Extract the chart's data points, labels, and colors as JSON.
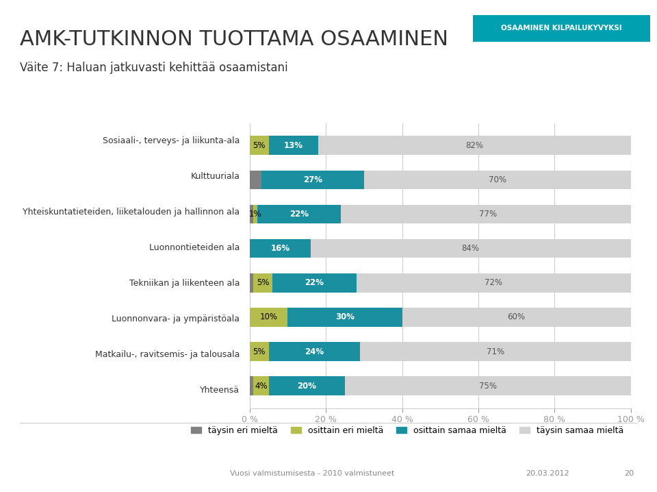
{
  "title_main": "AMK-TUTKINNON TUOTTAMA OSAAMINEN",
  "title_badge": "OSAAMINEN KILPAILUKYVYKSI",
  "subtitle": "Väite 7: Haluan jatkuvasti kehittää osaamistani",
  "categories": [
    "Yhteensä",
    "Matkailu-, ravitsemis- ja talousala",
    "Luonnonvara- ja ympäristöala",
    "Tekniikan ja liikenteen ala",
    "Luonnontieteiden ala",
    "Yhteiskuntatieteiden, liiketalouden ja hallinnon ala",
    "Kulttuuriala",
    "Sosiaali-, terveys- ja liikunta-ala"
  ],
  "data": {
    "taysin_eri": [
      1,
      0,
      0,
      1,
      0,
      1,
      3,
      0
    ],
    "osittain_eri": [
      4,
      5,
      10,
      5,
      0,
      1,
      0,
      5
    ],
    "osittain_samaa": [
      20,
      24,
      30,
      22,
      16,
      22,
      27,
      13
    ],
    "taysin_samaa": [
      75,
      71,
      60,
      72,
      84,
      77,
      70,
      82
    ]
  },
  "bar_labels": {
    "taysin_eri": [
      "",
      "",
      "",
      "",
      "",
      "",
      "",
      ""
    ],
    "osittain_eri": [
      "4%",
      "5%",
      "10%",
      "5%",
      "",
      "1%",
      "",
      "5%"
    ],
    "osittain_samaa": [
      "20%",
      "24%",
      "30%",
      "22%",
      "16%",
      "22%",
      "27%",
      "13%"
    ],
    "taysin_samaa": [
      "75%",
      "71%",
      "60%",
      "72%",
      "84%",
      "77%",
      "70%",
      "82%"
    ]
  },
  "colors": {
    "taysin_eri": "#808080",
    "osittain_eri": "#b5bd4c",
    "osittain_samaa": "#1a8fa0",
    "taysin_samaa": "#d3d3d3"
  },
  "legend_labels": [
    "täysin eri mieltä",
    "osittain eri mieltä",
    "osittain samaa mieltä",
    "täysin samaa mieltä"
  ],
  "footer_left": "Vuosi valmistumisesta - 2010 valmistuneet",
  "footer_date": "20.03.2012",
  "footer_page": "20",
  "background_color": "#ffffff",
  "badge_color": "#00a0b0",
  "xlim": [
    0,
    100
  ],
  "xticks": [
    0,
    20,
    40,
    60,
    80,
    100
  ],
  "xtick_labels": [
    "0 %",
    "20 %",
    "40 %",
    "60 %",
    "80 %",
    "100 %"
  ]
}
